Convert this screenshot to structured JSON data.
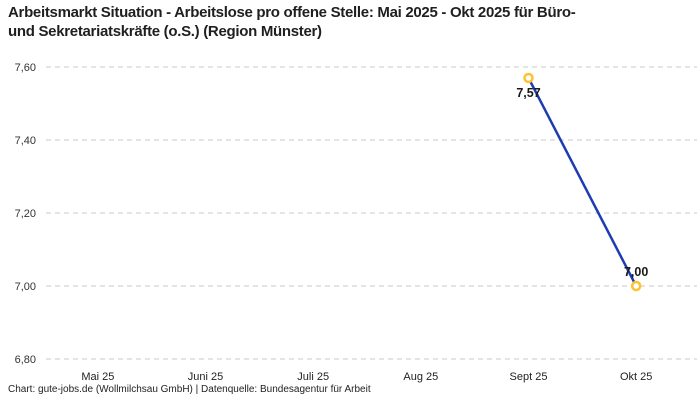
{
  "header": {
    "title_lines": [
      "Arbeitsmarkt Situation - Arbeitslose pro offene Stelle: Mai 2025 - Okt 2025 für Büro-",
      "und Sekretariatskräfte (o.S.) (Region Münster)"
    ]
  },
  "chart_data": {
    "type": "line",
    "title": "Arbeitsmarkt Situation - Arbeitslose pro offene Stelle: Mai 2025 - Okt 2025 für Büro- und Sekretariatskräfte (o.S.) (Region Münster)",
    "categories": [
      "Mai 25",
      "Juni 25",
      "Juli 25",
      "Aug 25",
      "Sept 25",
      "Okt 25"
    ],
    "values": [
      null,
      null,
      null,
      null,
      7.57,
      7.0
    ],
    "point_labels": [
      null,
      null,
      null,
      null,
      "7,57",
      "7,00"
    ],
    "point_label_positions": [
      null,
      null,
      null,
      null,
      "below",
      "above"
    ],
    "xlabel": "",
    "ylabel": "",
    "ylim": [
      6.8,
      7.6
    ],
    "yticks": [
      {
        "v": 7.6,
        "label": "7,60"
      },
      {
        "v": 7.4,
        "label": "7,40"
      },
      {
        "v": 7.2,
        "label": "7,20"
      },
      {
        "v": 7.0,
        "label": "7,00"
      },
      {
        "v": 6.8,
        "label": "6,80"
      }
    ],
    "grid": "horizontal-dashed",
    "legend_position": "none",
    "colors": {
      "line": "#1e3cb2",
      "marker_stroke": "#ffc12e",
      "marker_fill": "#ffffff",
      "grid": "#c9c9c9",
      "tick_text": "#333333",
      "point_label": "#1a1a1a"
    }
  },
  "footer": {
    "text": "Chart: gute-jobs.de (Wollmilchsau GmbH) | Datenquelle: Bundesagentur für Arbeit"
  }
}
